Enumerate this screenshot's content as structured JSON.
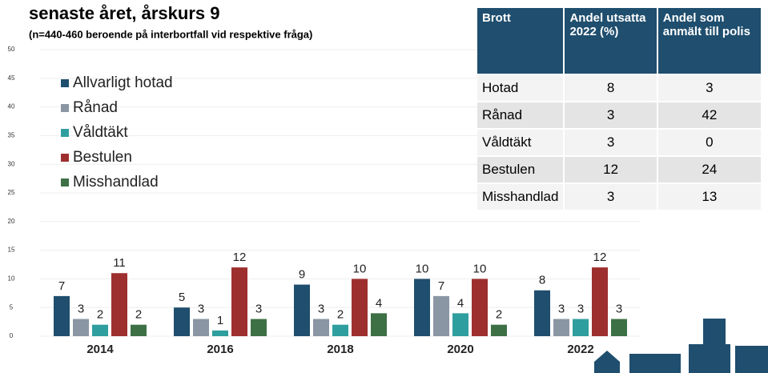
{
  "chart_data": {
    "type": "bar",
    "title": "senaste året, årskurs 9",
    "subtitle": "(n=440-460 beroende på interbortfall vid respektive fråga)",
    "categories": [
      "2014",
      "2016",
      "2018",
      "2020",
      "2022"
    ],
    "series": [
      {
        "name": "Allvarligt hotad",
        "color": "#1f4e6e",
        "values": [
          7,
          5,
          9,
          10,
          8
        ]
      },
      {
        "name": "Rånad",
        "color": "#8a96a3",
        "values": [
          3,
          3,
          3,
          7,
          3
        ]
      },
      {
        "name": "Våldtäkt",
        "color": "#2f9e9e",
        "values": [
          2,
          1,
          2,
          4,
          3
        ]
      },
      {
        "name": "Bestulen",
        "color": "#9e2f2f",
        "values": [
          11,
          12,
          10,
          10,
          12
        ]
      },
      {
        "name": "Misshandlad",
        "color": "#3d7045",
        "values": [
          2,
          3,
          4,
          2,
          3
        ]
      }
    ],
    "ylim": [
      0,
      50
    ],
    "yticks": [
      0,
      5,
      10,
      15,
      20,
      25,
      30,
      35,
      40,
      45,
      50
    ],
    "grid": true,
    "legend": "top-left"
  },
  "table": {
    "header": [
      "Brott",
      "Andel utsatta 2022 (%)",
      "Andel som anmält till polis"
    ],
    "rows": [
      [
        "Hotad",
        "8",
        "3"
      ],
      [
        "Rånad",
        "3",
        "42"
      ],
      [
        "Våldtäkt",
        "3",
        "0"
      ],
      [
        "Bestulen",
        "12",
        "24"
      ],
      [
        "Misshandlad",
        "3",
        "13"
      ]
    ]
  }
}
